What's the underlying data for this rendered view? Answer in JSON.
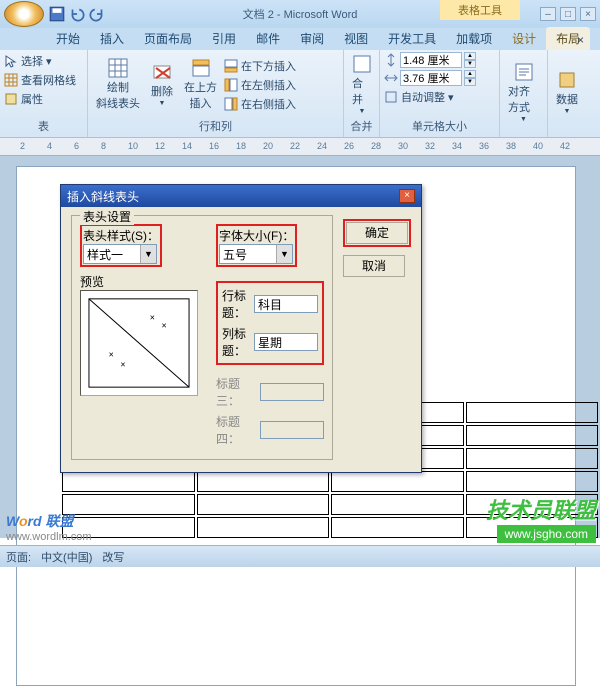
{
  "title": "文档 2 - Microsoft Word",
  "context_tab": "表格工具",
  "tabs": {
    "items": [
      "开始",
      "插入",
      "页面布局",
      "引用",
      "邮件",
      "审阅",
      "视图",
      "开发工具",
      "加载项"
    ],
    "ctx": [
      "设计",
      "布局"
    ],
    "active": "布局"
  },
  "ribbon": {
    "g1": {
      "select": "选择",
      "grid": "查看网格线",
      "props": "属性",
      "label": "表"
    },
    "g2": {
      "diag": "绘制\n斜线表头",
      "del": "删除",
      "above": "在上方\n插入",
      "below": "在下方插入",
      "left": "在左侧插入",
      "right": "在右侧插入",
      "label": "行和列"
    },
    "g3": {
      "merge": "合并",
      "label": "合并"
    },
    "g4": {
      "h": "1.48 厘米",
      "w": "3.76 厘米",
      "auto": "自动调整",
      "label": "单元格大小"
    },
    "g5": {
      "align": "对齐方式"
    },
    "g6": {
      "data": "数据"
    }
  },
  "ruler": [
    2,
    4,
    6,
    8,
    10,
    12,
    14,
    16,
    18,
    20,
    22,
    24,
    26,
    28,
    30,
    32,
    34,
    36,
    38,
    40,
    42
  ],
  "dialog": {
    "title": "插入斜线表头",
    "group": "表头设置",
    "style_label": "表头样式(S)：",
    "style_value": "样式一",
    "font_label": "字体大小(F)：",
    "font_value": "五号",
    "preview_label": "预览",
    "row_label": "行标题：",
    "row_value": "科目",
    "col_label": "列标题：",
    "col_value": "星期",
    "t3_label": "标题三：",
    "t4_label": "标题四：",
    "ok": "确定",
    "cancel": "取消"
  },
  "status": {
    "page": "页面:",
    "lang": "中文(中国)",
    "mode": "改写"
  },
  "wm1": {
    "w": "W",
    "o": "o",
    "rest": "rd 联盟",
    "url": "www.wordlm.com"
  },
  "wm2": {
    "cn": "技术员联盟",
    "url": "www.jsgho.com"
  }
}
